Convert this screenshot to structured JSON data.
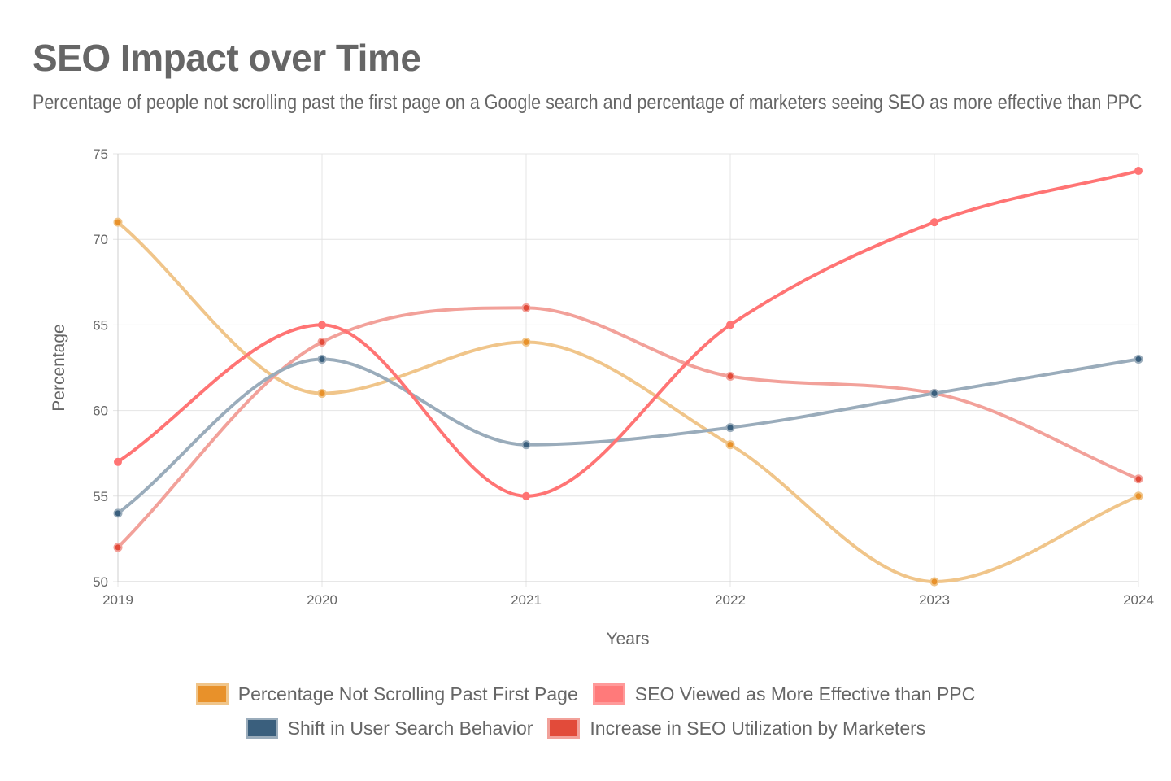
{
  "chart_data": {
    "type": "line",
    "title": "SEO Impact over Time",
    "subtitle": "Percentage of people not scrolling past the first page on a Google search and percentage of marketers seeing SEO as more effective than PPC",
    "xlabel": "Years",
    "ylabel": "Percentage",
    "categories": [
      "2019",
      "2020",
      "2021",
      "2022",
      "2023",
      "2024"
    ],
    "ylim": [
      50,
      75
    ],
    "yticks": [
      50,
      55,
      60,
      65,
      70,
      75
    ],
    "grid": true,
    "legend_position": "bottom",
    "series": [
      {
        "name": "Percentage Not Scrolling Past First Page",
        "values": [
          71,
          61,
          64,
          58,
          50,
          55
        ],
        "line_color": "#f0c58a",
        "point_color": "#e8912a",
        "swatch_fill": "#e8912a",
        "swatch_border": "#f0c58a"
      },
      {
        "name": "SEO Viewed as More Effective than PPC",
        "values": [
          57,
          65,
          55,
          65,
          71,
          74
        ],
        "line_color": "#ff7474",
        "point_color": "#ff7474",
        "swatch_fill": "#ff7a7a",
        "swatch_border": "#ff9a9a"
      },
      {
        "name": "Shift in User Search Behavior",
        "values": [
          54,
          63,
          58,
          59,
          61,
          63
        ],
        "line_color": "#9aacbb",
        "point_color": "#3a5f7d",
        "swatch_fill": "#3a5f7d",
        "swatch_border": "#9aacbb"
      },
      {
        "name": "Increase in SEO Utilization by Marketers",
        "values": [
          52,
          64,
          66,
          62,
          61,
          56
        ],
        "line_color": "#f2a19a",
        "point_color": "#e24b3a",
        "swatch_fill": "#e24b3a",
        "swatch_border": "#f2a19a"
      }
    ]
  }
}
